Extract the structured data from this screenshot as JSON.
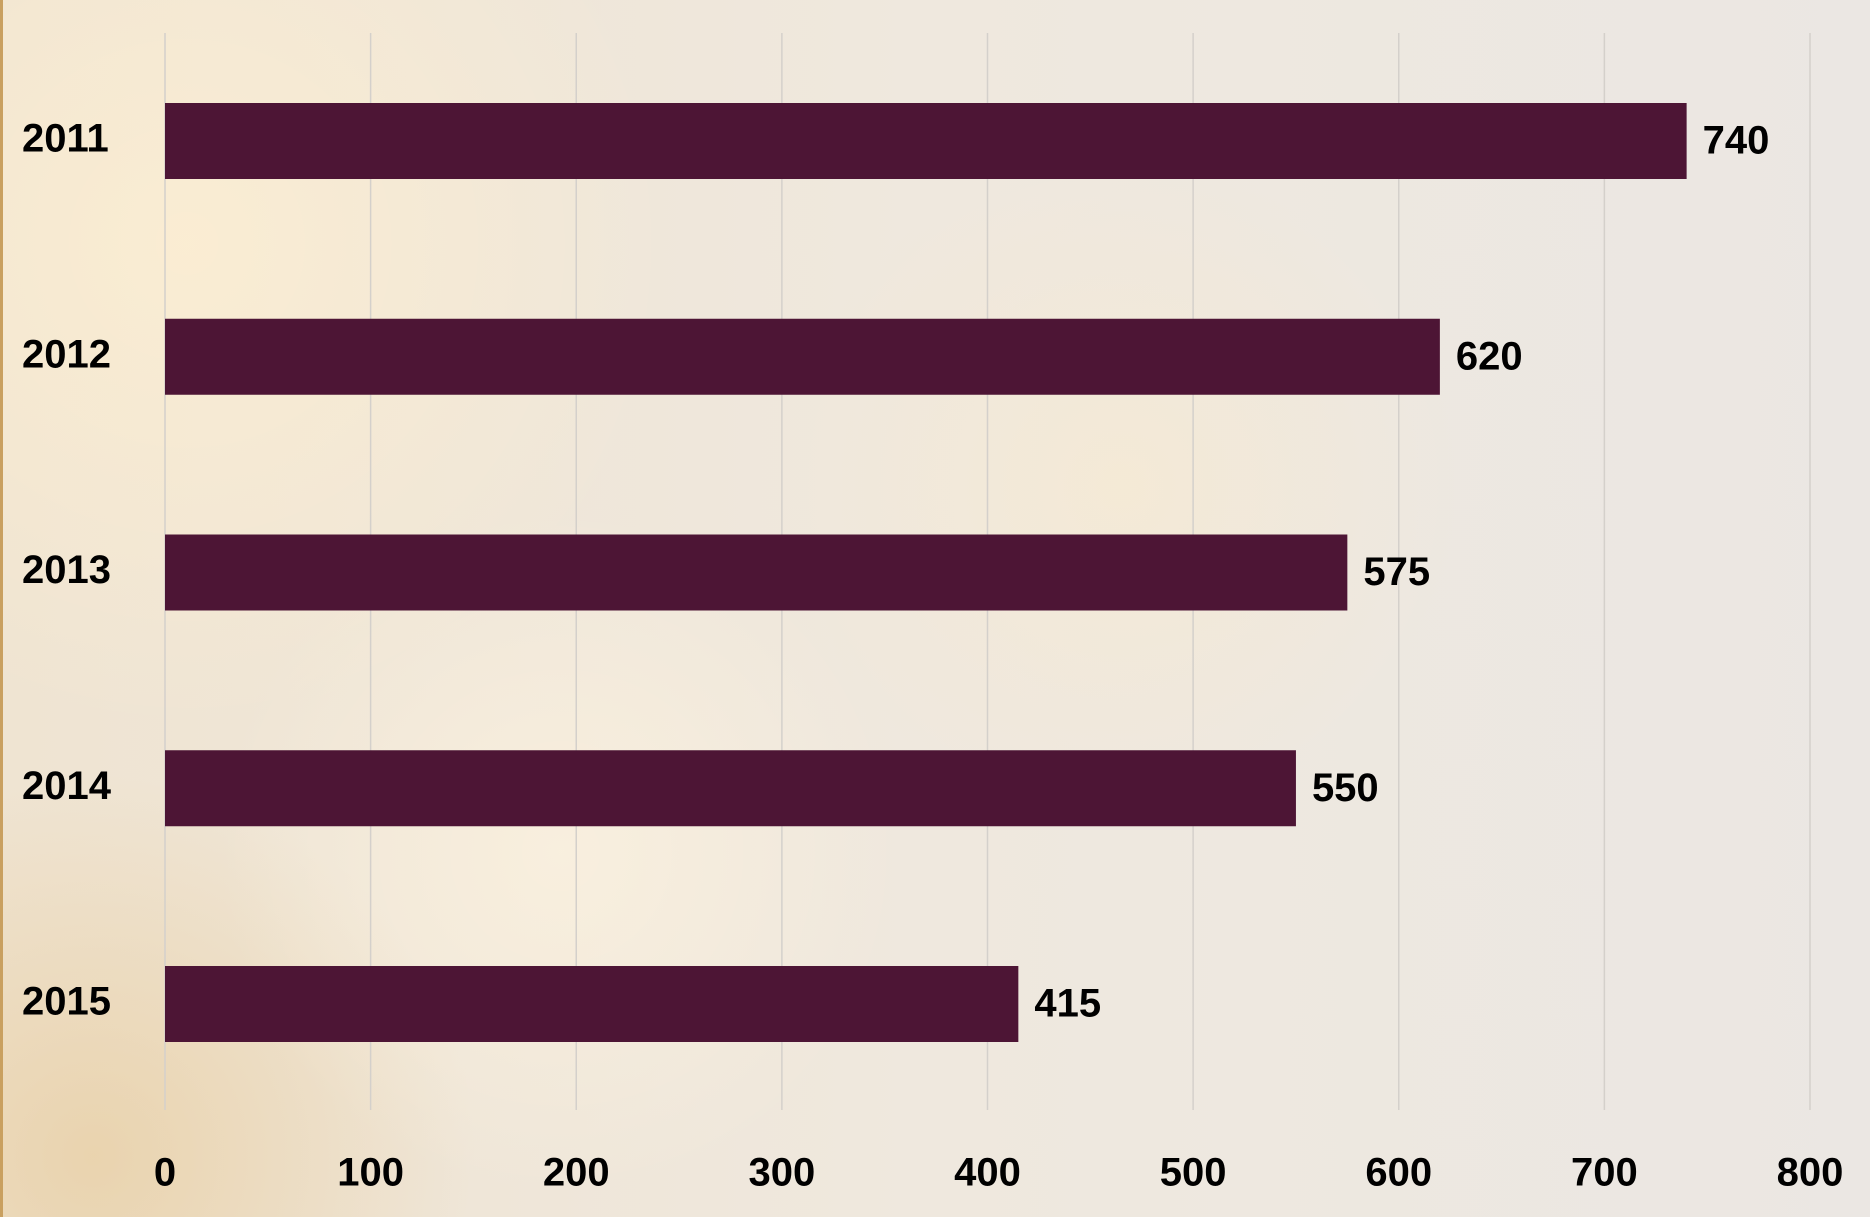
{
  "chart_data": {
    "type": "bar",
    "orientation": "horizontal",
    "categories": [
      "2011",
      "2012",
      "2013",
      "2014",
      "2015"
    ],
    "values": [
      740,
      620,
      575,
      550,
      415
    ],
    "color": "#4d1535",
    "xlim": [
      0,
      800
    ],
    "xticks": [
      0,
      100,
      200,
      300,
      400,
      500,
      600,
      700,
      800
    ],
    "grid": true
  }
}
